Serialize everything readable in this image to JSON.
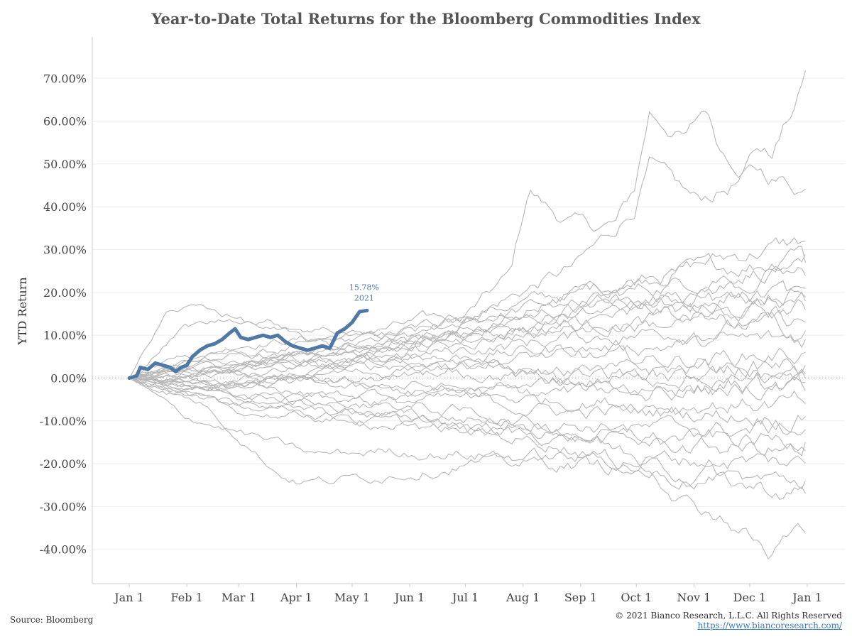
{
  "title": "Year-to-Date Total Returns for the Bloomberg Commodities Index",
  "footer": {
    "source": "Source: Bloomberg",
    "copyright": "© 2021 Bianco Research, L.L.C. All Rights Reserved",
    "link": "https://www.biancoresearch.com/"
  },
  "colors": {
    "history_line": "#b8b8b8",
    "highlight_line": "#4e79a7",
    "zero_line": "#bbbbbb",
    "grid": "#eeeeee",
    "axis": "#cccccc"
  },
  "chart_data": {
    "type": "line",
    "title": "Year-to-Date Total Returns for the Bloomberg Commodities Index",
    "xlabel": "",
    "ylabel": "YTD Return",
    "xlim": [
      0,
      365
    ],
    "ylim": [
      -48,
      78
    ],
    "x_ticks": [
      {
        "label": "Jan 1",
        "day": 0
      },
      {
        "label": "Feb 1",
        "day": 31
      },
      {
        "label": "Mar 1",
        "day": 59
      },
      {
        "label": "Apr 1",
        "day": 90
      },
      {
        "label": "May 1",
        "day": 120
      },
      {
        "label": "Jun 1",
        "day": 151
      },
      {
        "label": "Jul 1",
        "day": 181
      },
      {
        "label": "Aug 1",
        "day": 212
      },
      {
        "label": "Sep 1",
        "day": 243
      },
      {
        "label": "Oct 1",
        "day": 273
      },
      {
        "label": "Nov 1",
        "day": 304
      },
      {
        "label": "Dec 1",
        "day": 334
      },
      {
        "label": "Jan 1",
        "day": 365
      }
    ],
    "y_ticks": [
      {
        "label": "70.00%",
        "value": 70
      },
      {
        "label": "60.00%",
        "value": 60
      },
      {
        "label": "50.00%",
        "value": 50
      },
      {
        "label": "40.00%",
        "value": 40
      },
      {
        "label": "30.00%",
        "value": 30
      },
      {
        "label": "20.00%",
        "value": 20
      },
      {
        "label": "10.00%",
        "value": 10
      },
      {
        "label": "0.00%",
        "value": 0
      },
      {
        "label": "-10.00%",
        "value": -10
      },
      {
        "label": "-20.00%",
        "value": -20
      },
      {
        "label": "-30.00%",
        "value": -30
      },
      {
        "label": "-40.00%",
        "value": -40
      }
    ],
    "grid": true,
    "highlight": {
      "name": "2021",
      "label_value": "15.78%",
      "points": [
        [
          0,
          0
        ],
        [
          4,
          0.5
        ],
        [
          6,
          2.5
        ],
        [
          10,
          2
        ],
        [
          14,
          3.5
        ],
        [
          18,
          3
        ],
        [
          22,
          2.5
        ],
        [
          25,
          1.5
        ],
        [
          28,
          2.5
        ],
        [
          31,
          3
        ],
        [
          34,
          5
        ],
        [
          38,
          6.5
        ],
        [
          42,
          7.5
        ],
        [
          46,
          8
        ],
        [
          50,
          9
        ],
        [
          54,
          10.5
        ],
        [
          57,
          11.5
        ],
        [
          60,
          9.5
        ],
        [
          64,
          9
        ],
        [
          68,
          9.5
        ],
        [
          72,
          10
        ],
        [
          76,
          9.5
        ],
        [
          80,
          10
        ],
        [
          84,
          8.5
        ],
        [
          88,
          7.5
        ],
        [
          92,
          7
        ],
        [
          96,
          6.5
        ],
        [
          100,
          7
        ],
        [
          104,
          7.5
        ],
        [
          108,
          7
        ],
        [
          112,
          10.5
        ],
        [
          116,
          11.5
        ],
        [
          120,
          13
        ],
        [
          124,
          15.5
        ],
        [
          128,
          15.78
        ]
      ]
    },
    "history_series": [
      {
        "end": 73.5,
        "path": [
          [
            0,
            0
          ],
          [
            30,
            5
          ],
          [
            60,
            3
          ],
          [
            90,
            5
          ],
          [
            120,
            8
          ],
          [
            150,
            10
          ],
          [
            180,
            14
          ],
          [
            205,
            24
          ],
          [
            215,
            44
          ],
          [
            230,
            38
          ],
          [
            250,
            35
          ],
          [
            262,
            36
          ],
          [
            272,
            44
          ],
          [
            280,
            62
          ],
          [
            292,
            58
          ],
          [
            300,
            56
          ],
          [
            310,
            63
          ],
          [
            318,
            54
          ],
          [
            330,
            50
          ],
          [
            338,
            55
          ],
          [
            345,
            52
          ],
          [
            352,
            58
          ],
          [
            360,
            65
          ],
          [
            365,
            73.5
          ]
        ]
      },
      {
        "end": 44,
        "path": [
          [
            0,
            0
          ],
          [
            40,
            4
          ],
          [
            90,
            7
          ],
          [
            140,
            10
          ],
          [
            180,
            14
          ],
          [
            210,
            20
          ],
          [
            240,
            26
          ],
          [
            262,
            35
          ],
          [
            272,
            40
          ],
          [
            280,
            50
          ],
          [
            290,
            46
          ],
          [
            305,
            41
          ],
          [
            320,
            44
          ],
          [
            338,
            48
          ],
          [
            352,
            46
          ],
          [
            365,
            44
          ]
        ]
      },
      {
        "end": 32,
        "path": [
          [
            0,
            0
          ],
          [
            60,
            8
          ],
          [
            120,
            10
          ],
          [
            180,
            15
          ],
          [
            240,
            20
          ],
          [
            300,
            26
          ],
          [
            340,
            30
          ],
          [
            365,
            32
          ]
        ]
      },
      {
        "end": 29,
        "path": [
          [
            0,
            0
          ],
          [
            50,
            3
          ],
          [
            110,
            6
          ],
          [
            170,
            12
          ],
          [
            230,
            18
          ],
          [
            290,
            24
          ],
          [
            340,
            27
          ],
          [
            365,
            29
          ]
        ]
      },
      {
        "end": 27,
        "path": [
          [
            0,
            0
          ],
          [
            40,
            -2
          ],
          [
            100,
            4
          ],
          [
            160,
            9
          ],
          [
            220,
            15
          ],
          [
            280,
            21
          ],
          [
            330,
            25
          ],
          [
            365,
            27
          ]
        ]
      },
      {
        "end": 24,
        "path": [
          [
            0,
            0
          ],
          [
            60,
            2
          ],
          [
            120,
            6
          ],
          [
            180,
            10
          ],
          [
            240,
            16
          ],
          [
            300,
            20
          ],
          [
            365,
            24
          ]
        ]
      },
      {
        "end": 21,
        "path": [
          [
            0,
            0
          ],
          [
            50,
            6
          ],
          [
            110,
            3
          ],
          [
            170,
            8
          ],
          [
            230,
            13
          ],
          [
            290,
            18
          ],
          [
            365,
            21
          ]
        ]
      },
      {
        "end": 18,
        "path": [
          [
            0,
            0
          ],
          [
            40,
            1
          ],
          [
            100,
            5
          ],
          [
            160,
            10
          ],
          [
            220,
            12
          ],
          [
            280,
            15
          ],
          [
            365,
            18
          ]
        ]
      },
      {
        "end": 16,
        "path": [
          [
            0,
            0
          ],
          [
            60,
            4
          ],
          [
            120,
            7
          ],
          [
            180,
            9
          ],
          [
            240,
            12
          ],
          [
            300,
            14
          ],
          [
            365,
            16
          ]
        ]
      },
      {
        "end": 13,
        "path": [
          [
            0,
            0
          ],
          [
            50,
            -1
          ],
          [
            110,
            2
          ],
          [
            170,
            6
          ],
          [
            230,
            9
          ],
          [
            290,
            11
          ],
          [
            365,
            13
          ]
        ]
      },
      {
        "end": 9,
        "path": [
          [
            0,
            0
          ],
          [
            60,
            3
          ],
          [
            120,
            2
          ],
          [
            180,
            5
          ],
          [
            240,
            7
          ],
          [
            300,
            8
          ],
          [
            365,
            9
          ]
        ]
      },
      {
        "end": 6,
        "path": [
          [
            0,
            0
          ],
          [
            40,
            2
          ],
          [
            100,
            4
          ],
          [
            160,
            3
          ],
          [
            220,
            5
          ],
          [
            280,
            4
          ],
          [
            365,
            6
          ]
        ]
      },
      {
        "end": 3,
        "path": [
          [
            0,
            0
          ],
          [
            50,
            -2
          ],
          [
            110,
            1
          ],
          [
            170,
            2
          ],
          [
            230,
            0
          ],
          [
            290,
            2
          ],
          [
            365,
            3
          ]
        ]
      },
      {
        "end": 0,
        "path": [
          [
            0,
            0
          ],
          [
            60,
            1
          ],
          [
            120,
            -1
          ],
          [
            180,
            2
          ],
          [
            240,
            -1
          ],
          [
            300,
            1
          ],
          [
            365,
            0
          ]
        ]
      },
      {
        "end": -3,
        "path": [
          [
            0,
            0
          ],
          [
            40,
            -3
          ],
          [
            100,
            -1
          ],
          [
            160,
            -2
          ],
          [
            220,
            -4
          ],
          [
            280,
            -2
          ],
          [
            365,
            -3
          ]
        ]
      },
      {
        "end": -6,
        "path": [
          [
            0,
            0
          ],
          [
            50,
            1
          ],
          [
            110,
            -2
          ],
          [
            170,
            -4
          ],
          [
            230,
            -5
          ],
          [
            290,
            -6
          ],
          [
            365,
            -6
          ]
        ]
      },
      {
        "end": -9,
        "path": [
          [
            0,
            0
          ],
          [
            60,
            -4
          ],
          [
            120,
            -6
          ],
          [
            180,
            -5
          ],
          [
            240,
            -8
          ],
          [
            300,
            -8
          ],
          [
            365,
            -9
          ]
        ]
      },
      {
        "end": -12,
        "path": [
          [
            0,
            0
          ],
          [
            40,
            -5
          ],
          [
            100,
            -8
          ],
          [
            160,
            -9
          ],
          [
            220,
            -10
          ],
          [
            280,
            -12
          ],
          [
            365,
            -12
          ]
        ]
      },
      {
        "end": -15,
        "path": [
          [
            0,
            0
          ],
          [
            50,
            -3
          ],
          [
            110,
            -7
          ],
          [
            170,
            -10
          ],
          [
            230,
            -13
          ],
          [
            290,
            -14
          ],
          [
            365,
            -15
          ]
        ]
      },
      {
        "end": -17,
        "path": [
          [
            0,
            0
          ],
          [
            60,
            -8
          ],
          [
            120,
            -10
          ],
          [
            180,
            -12
          ],
          [
            240,
            -14
          ],
          [
            300,
            -16
          ],
          [
            365,
            -17
          ]
        ]
      },
      {
        "end": -20,
        "path": [
          [
            0,
            0
          ],
          [
            30,
            -9
          ],
          [
            70,
            -14
          ],
          [
            100,
            -18
          ],
          [
            140,
            -17
          ],
          [
            200,
            -18
          ],
          [
            260,
            -19
          ],
          [
            320,
            -19
          ],
          [
            365,
            -20
          ]
        ]
      },
      {
        "end": -24,
        "path": [
          [
            0,
            0
          ],
          [
            40,
            -6
          ],
          [
            80,
            -22
          ],
          [
            90,
            -24
          ],
          [
            110,
            -24
          ],
          [
            130,
            -23
          ],
          [
            180,
            -20
          ],
          [
            240,
            -20
          ],
          [
            300,
            -22
          ],
          [
            340,
            -24
          ],
          [
            365,
            -24
          ]
        ]
      },
      {
        "end": -27,
        "path": [
          [
            0,
            0
          ],
          [
            50,
            -4
          ],
          [
            110,
            -9
          ],
          [
            170,
            -12
          ],
          [
            230,
            -15
          ],
          [
            280,
            -22
          ],
          [
            310,
            -24
          ],
          [
            345,
            -26
          ],
          [
            365,
            -27
          ]
        ]
      },
      {
        "end": -36,
        "path": [
          [
            0,
            0
          ],
          [
            60,
            -2
          ],
          [
            120,
            -5
          ],
          [
            180,
            -8
          ],
          [
            240,
            -12
          ],
          [
            280,
            -20
          ],
          [
            300,
            -28
          ],
          [
            320,
            -32
          ],
          [
            335,
            -37
          ],
          [
            345,
            -42
          ],
          [
            352,
            -38
          ],
          [
            365,
            -36
          ]
        ]
      },
      {
        "end": 11,
        "path": [
          [
            0,
            0
          ],
          [
            30,
            12
          ],
          [
            60,
            14
          ],
          [
            90,
            12
          ],
          [
            120,
            11
          ],
          [
            150,
            9
          ],
          [
            180,
            10
          ],
          [
            240,
            12
          ],
          [
            300,
            13
          ],
          [
            365,
            11
          ]
        ]
      },
      {
        "end": 1,
        "path": [
          [
            0,
            0
          ],
          [
            20,
            15
          ],
          [
            40,
            17
          ],
          [
            70,
            12
          ],
          [
            100,
            8
          ],
          [
            140,
            5
          ],
          [
            180,
            3
          ],
          [
            240,
            2
          ],
          [
            300,
            0
          ],
          [
            365,
            1
          ]
        ]
      },
      {
        "end": 19,
        "path": [
          [
            0,
            0
          ],
          [
            60,
            -2
          ],
          [
            120,
            4
          ],
          [
            180,
            13
          ],
          [
            220,
            17
          ],
          [
            260,
            18
          ],
          [
            300,
            17
          ],
          [
            365,
            19
          ]
        ]
      },
      {
        "end": -1,
        "path": [
          [
            0,
            0
          ],
          [
            50,
            -6
          ],
          [
            100,
            -4
          ],
          [
            160,
            -3
          ],
          [
            220,
            -1
          ],
          [
            280,
            -3
          ],
          [
            340,
            -2
          ],
          [
            365,
            -1
          ]
        ]
      }
    ]
  }
}
